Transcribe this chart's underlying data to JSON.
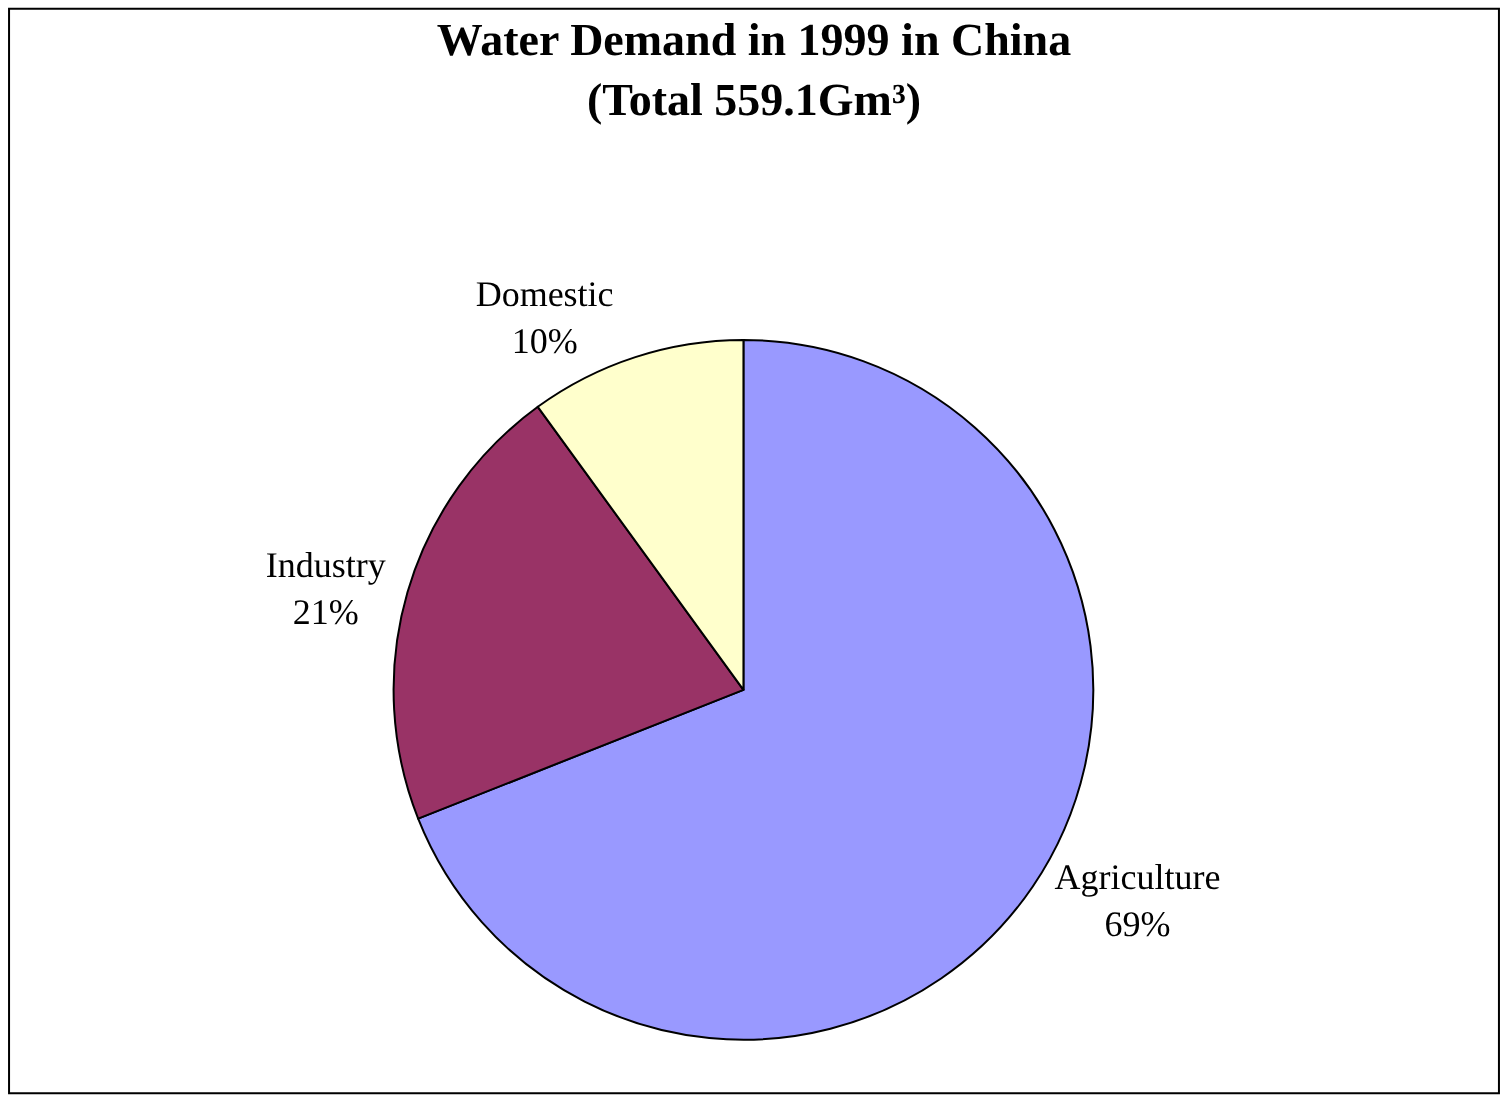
{
  "chart_data": {
    "type": "pie",
    "title": "Water Demand in 1999 in China\n(Total 559.1Gm³)",
    "categories": [
      "Agriculture",
      "Industry",
      "Domestic"
    ],
    "values": [
      69,
      21,
      10
    ],
    "value_labels": [
      "69%",
      "21%",
      "10%"
    ],
    "colors": [
      "#9999ff",
      "#993366",
      "#ffffcc"
    ],
    "legend": false
  }
}
